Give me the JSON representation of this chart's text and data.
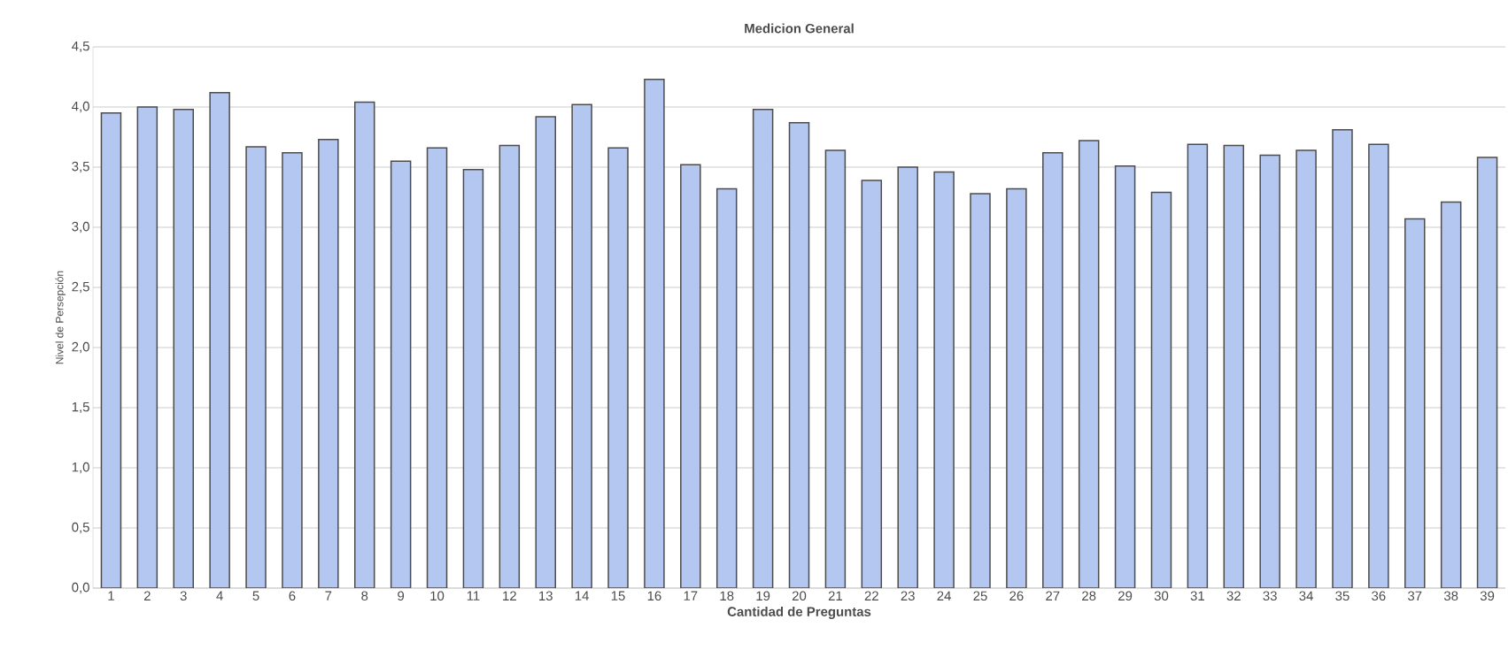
{
  "chart_data": {
    "type": "bar",
    "title": "Medicion General",
    "xlabel": "Cantidad de Preguntas",
    "ylabel": "Nivel de Persepción",
    "categories": [
      "1",
      "2",
      "3",
      "4",
      "5",
      "6",
      "7",
      "8",
      "9",
      "10",
      "11",
      "12",
      "13",
      "14",
      "15",
      "16",
      "17",
      "18",
      "19",
      "20",
      "21",
      "22",
      "23",
      "24",
      "25",
      "26",
      "27",
      "28",
      "29",
      "30",
      "31",
      "32",
      "33",
      "34",
      "35",
      "36",
      "37",
      "38",
      "39"
    ],
    "values": [
      3.95,
      4.0,
      3.98,
      4.12,
      3.67,
      3.62,
      3.73,
      4.04,
      3.55,
      3.66,
      3.48,
      3.68,
      3.92,
      4.02,
      3.66,
      4.23,
      3.52,
      3.32,
      3.98,
      3.87,
      3.64,
      3.39,
      3.5,
      3.46,
      3.28,
      3.32,
      3.62,
      3.72,
      3.51,
      3.29,
      3.69,
      3.68,
      3.6,
      3.64,
      3.81,
      3.69,
      3.07,
      3.21,
      3.58
    ],
    "color": "#b4c7f0",
    "ylim": [
      0,
      4.5
    ],
    "yticks": [
      {
        "value": 0,
        "label": "0,0"
      },
      {
        "value": 0.5,
        "label": "0,5"
      },
      {
        "value": 1,
        "label": "1,0"
      },
      {
        "value": 1.5,
        "label": "1,5"
      },
      {
        "value": 2,
        "label": "2,0"
      },
      {
        "value": 2.5,
        "label": "2,5"
      },
      {
        "value": 3,
        "label": "3,0"
      },
      {
        "value": 3.5,
        "label": "3,5"
      },
      {
        "value": 4,
        "label": "4,0"
      },
      {
        "value": 4.5,
        "label": "4,5"
      }
    ],
    "grid": "y"
  }
}
